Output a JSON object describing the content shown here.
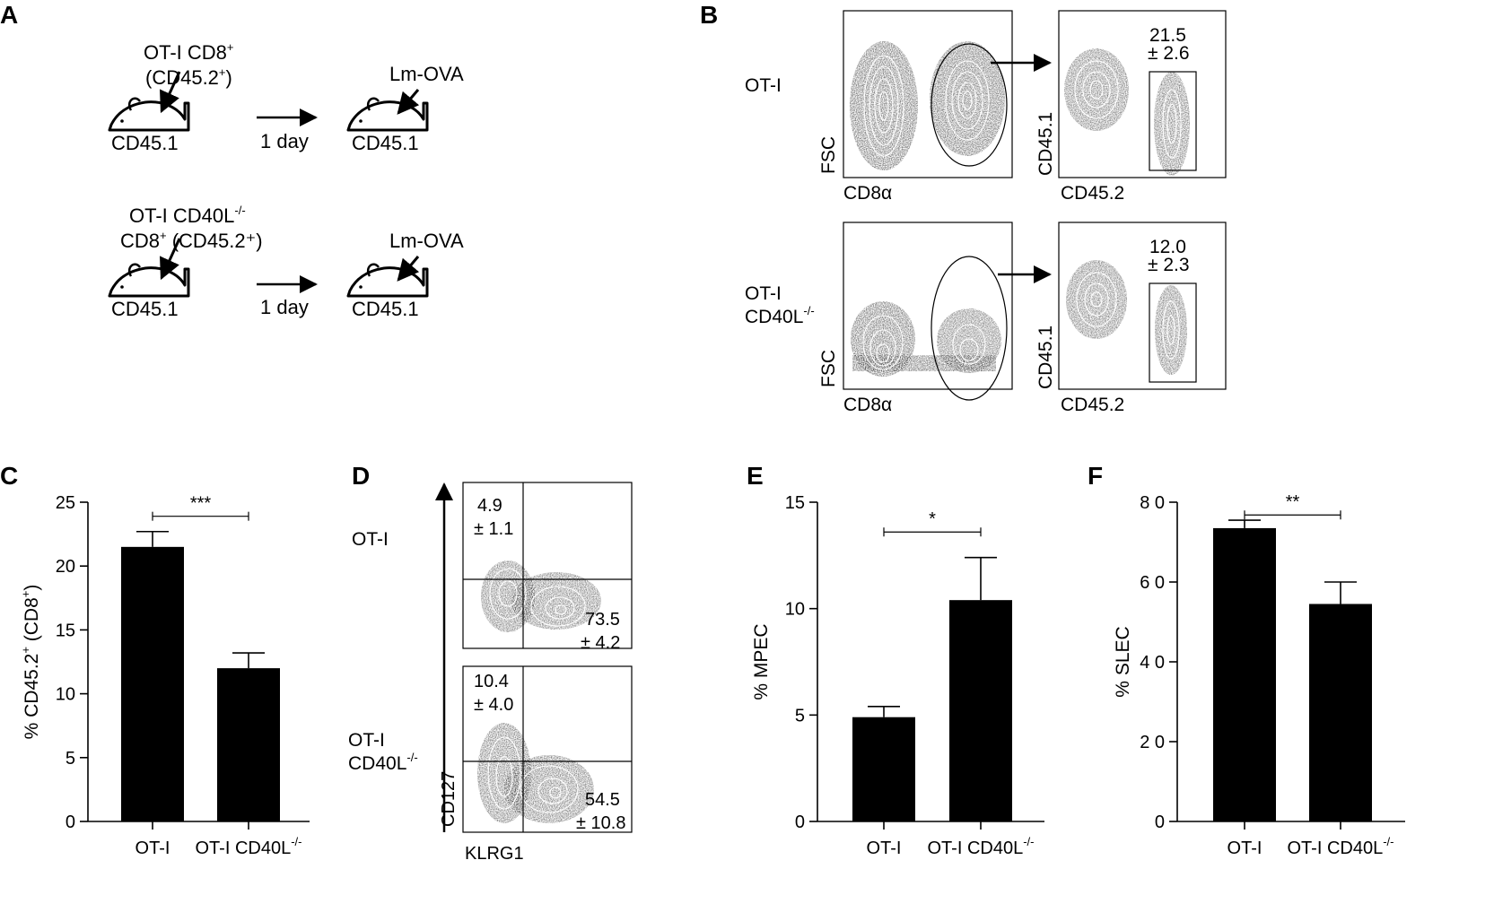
{
  "colors": {
    "ink": "#000000",
    "bar": "#000000",
    "background": "#ffffff"
  },
  "panel_a": {
    "letter": "A",
    "rows": [
      {
        "donor_line1": "OT-I CD8",
        "donor_line1_sup": "+",
        "donor_line2": "(CD45.2",
        "donor_line2_sup": "+",
        "donor_line2_end": ")",
        "host1": "CD45.1",
        "interval": "1 day",
        "challenge": "Lm-OVA",
        "host2": "CD45.1"
      },
      {
        "donor_line1": "OT-I CD40L",
        "donor_line1_sup": "-/-",
        "donor_line2": "CD8",
        "donor_line2_sup": "+",
        "donor_line2_end": " (CD45.2⁺)",
        "host1": "CD45.1",
        "interval": "1 day",
        "challenge": "Lm-OVA",
        "host2": "CD45.1"
      }
    ]
  },
  "panel_b": {
    "letter": "B",
    "rows": [
      {
        "label1": "OT-I",
        "label2": "",
        "label2_sup": "",
        "gate_value": "21.5",
        "gate_sd": "± 2.6"
      },
      {
        "label1": "OT-I",
        "label2": "CD40L",
        "label2_sup": "-/-",
        "gate_value": "12.0",
        "gate_sd": "± 2.3"
      }
    ],
    "plot1_xlabel": "CD8α",
    "plot1_ylabel": "FSC",
    "plot2_xlabel": "CD45.2",
    "plot2_ylabel": "CD45.1"
  },
  "panel_d": {
    "letter": "D",
    "xlabel": "KLRG1",
    "ylabel": "CD127",
    "rows": [
      {
        "label1": "OT-I",
        "label2": "",
        "label2_sup": "",
        "ul_value": "4.9",
        "ul_sd": "± 1.1",
        "lr_value": "73.5",
        "lr_sd": "± 4.2"
      },
      {
        "label1": "OT-I",
        "label2": "CD40L",
        "label2_sup": "-/-",
        "ul_value": "10.4",
        "ul_sd": "± 4.0",
        "lr_value": "54.5",
        "lr_sd": "± 10.8"
      }
    ]
  },
  "chart_data": [
    {
      "panel": "C",
      "type": "bar",
      "categories": [
        "OT-I",
        "OT-I CD40L-/-"
      ],
      "values": [
        21.5,
        12.0
      ],
      "errors": [
        1.2,
        1.2
      ],
      "ylabel": "% CD45.2+ (CD8+)",
      "ylim": [
        0,
        25
      ],
      "yticks": [
        0,
        5,
        10,
        15,
        20,
        25
      ],
      "significance": "***"
    },
    {
      "panel": "E",
      "type": "bar",
      "categories": [
        "OT-I",
        "OT-I CD40L-/-"
      ],
      "values": [
        4.9,
        10.4
      ],
      "errors": [
        0.5,
        2.0
      ],
      "ylabel": "% MPEC",
      "ylim": [
        0,
        15
      ],
      "yticks": [
        0,
        5,
        10,
        15
      ],
      "significance": "*"
    },
    {
      "panel": "F",
      "type": "bar",
      "categories": [
        "OT-I",
        "OT-I CD40L-/-"
      ],
      "values": [
        73.5,
        54.5
      ],
      "errors": [
        2.0,
        5.5
      ],
      "ylabel": "% SLEC",
      "ylim": [
        0,
        80
      ],
      "yticks": [
        0,
        20,
        40,
        60,
        80
      ],
      "significance": "**"
    }
  ]
}
